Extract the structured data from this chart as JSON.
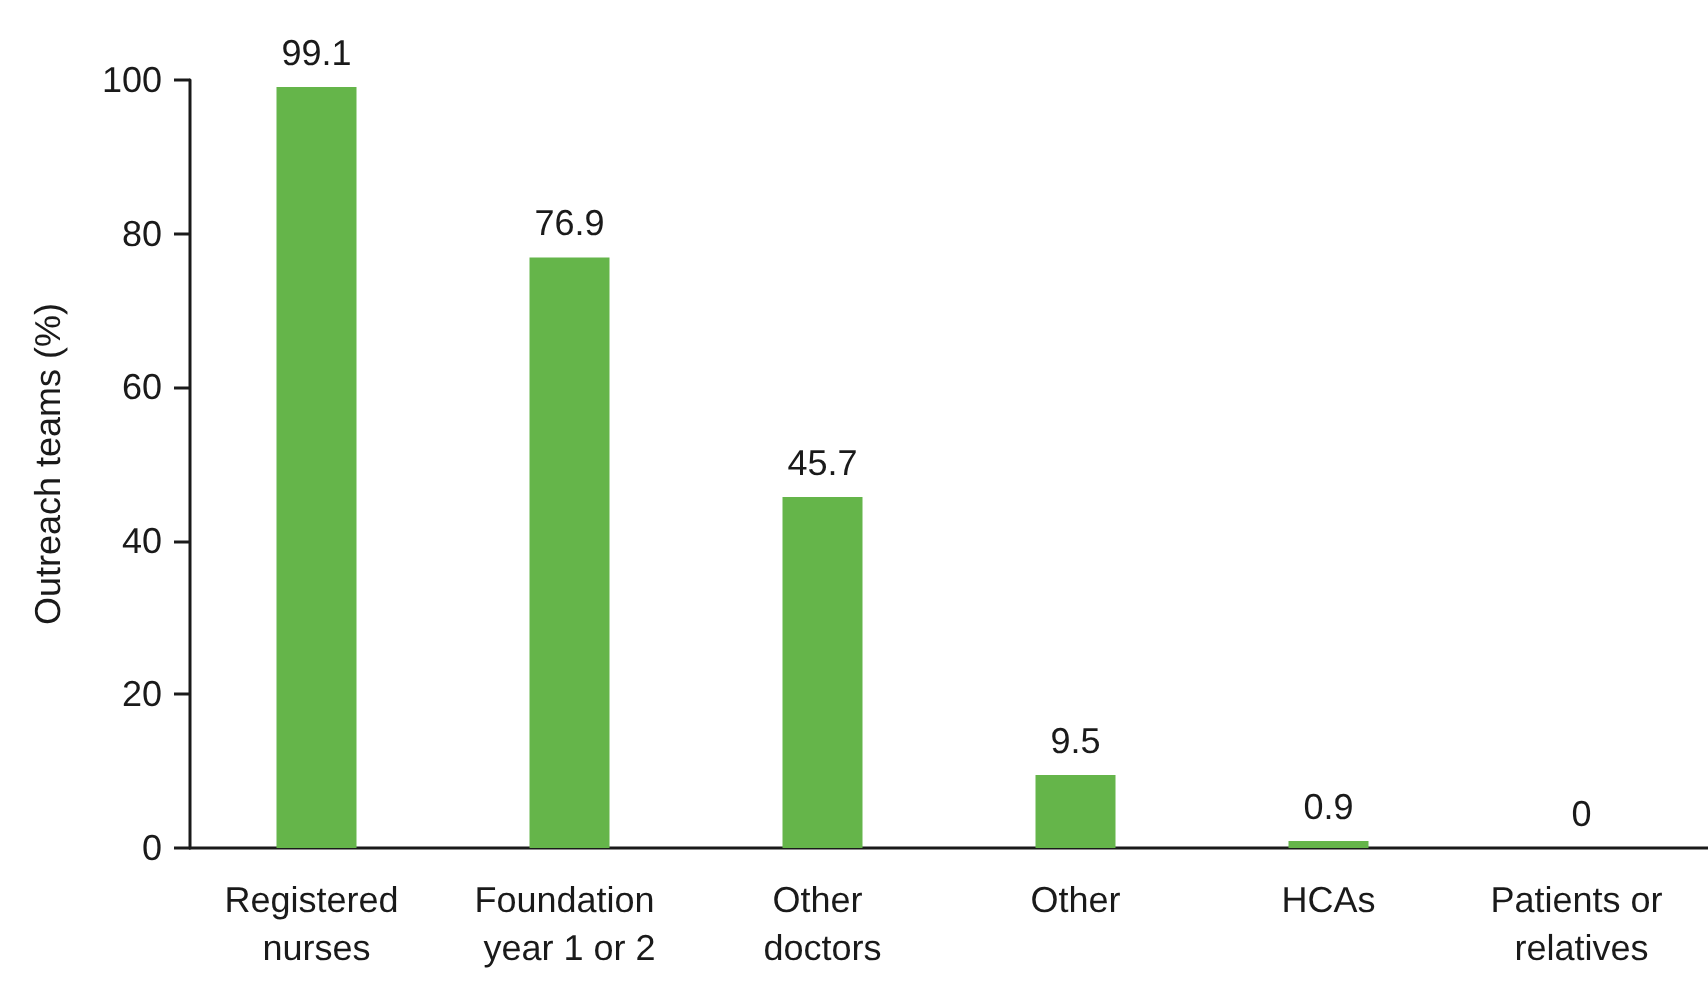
{
  "chart_data": {
    "type": "bar",
    "ylabel": "Outreach teams (%)",
    "categories": [
      "Registered nurses",
      "Foundation year 1 or 2",
      "Other doctors",
      "Other",
      "HCAs",
      "Patients or relatives"
    ],
    "values": [
      99.1,
      76.9,
      45.7,
      9.5,
      0.9,
      0
    ],
    "color": "#65b54a",
    "ylim": [
      0,
      100
    ],
    "yticks": [
      0,
      20,
      40,
      60,
      80,
      100
    ],
    "data_labels": true,
    "grid": false
  }
}
